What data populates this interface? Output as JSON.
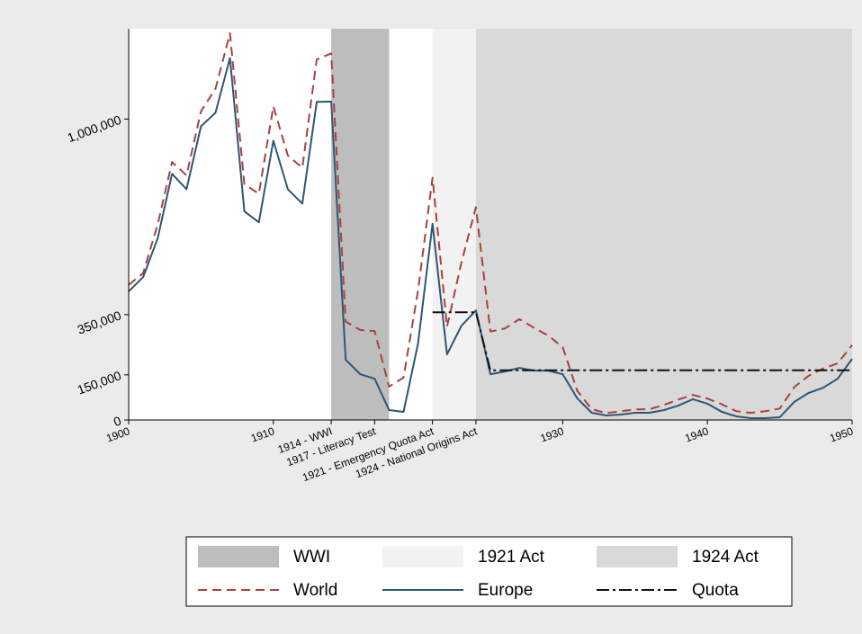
{
  "chart_data": {
    "type": "line",
    "x": [
      1900,
      1901,
      1902,
      1903,
      1904,
      1905,
      1906,
      1907,
      1908,
      1909,
      1910,
      1911,
      1912,
      1913,
      1914,
      1915,
      1916,
      1917,
      1918,
      1919,
      1920,
      1921,
      1922,
      1923,
      1924,
      1925,
      1926,
      1927,
      1928,
      1929,
      1930,
      1931,
      1932,
      1933,
      1934,
      1935,
      1936,
      1937,
      1938,
      1939,
      1940,
      1941,
      1942,
      1943,
      1944,
      1945,
      1946,
      1947,
      1948,
      1949,
      1950
    ],
    "series": [
      {
        "name": "World",
        "color": "#a8413f",
        "dash": "10,6",
        "values": [
          449000,
          488000,
          649000,
          857000,
          813000,
          1026000,
          1101000,
          1285000,
          783000,
          752000,
          1042000,
          879000,
          838000,
          1198000,
          1218000,
          327000,
          299000,
          295000,
          111000,
          141000,
          430000,
          805000,
          310000,
          523000,
          707000,
          294000,
          304000,
          335000,
          307000,
          280000,
          242000,
          97000,
          36000,
          23000,
          29000,
          35000,
          36000,
          50000,
          68000,
          83000,
          71000,
          52000,
          29000,
          24000,
          29000,
          38000,
          109000,
          147000,
          171000,
          188000,
          249000
        ]
      },
      {
        "name": "Europe",
        "color": "#2e5675",
        "dash": "none",
        "values": [
          427000,
          475000,
          603000,
          818000,
          767000,
          976000,
          1021000,
          1203000,
          693000,
          657000,
          928000,
          767000,
          719000,
          1057000,
          1058000,
          200000,
          152000,
          137000,
          33000,
          27000,
          254000,
          652000,
          218000,
          313000,
          364000,
          152000,
          161000,
          173000,
          164000,
          164000,
          152000,
          72000,
          24000,
          15000,
          18000,
          24000,
          24000,
          33000,
          48000,
          69000,
          54000,
          27000,
          12000,
          6000,
          6000,
          9000,
          60000,
          90000,
          107000,
          137000,
          203000
        ]
      },
      {
        "name": "Quota",
        "color": "#111111",
        "dash": "14,4,3,4",
        "values": [
          null,
          null,
          null,
          null,
          null,
          null,
          null,
          null,
          null,
          null,
          null,
          null,
          null,
          null,
          null,
          null,
          null,
          null,
          null,
          null,
          null,
          358000,
          358000,
          358000,
          358000,
          165000,
          165000,
          165000,
          165000,
          165000,
          165000,
          165000,
          165000,
          165000,
          165000,
          165000,
          165000,
          165000,
          165000,
          165000,
          165000,
          165000,
          165000,
          165000,
          165000,
          165000,
          165000,
          165000,
          165000,
          165000,
          165000
        ]
      }
    ],
    "regions": [
      {
        "name": "WWI",
        "start": 1914,
        "end": 1918,
        "color": "#bdbdbd"
      },
      {
        "name": "1921 Act",
        "start": 1921,
        "end": 1924,
        "color": "#f2f2f2"
      },
      {
        "name": "1924 Act",
        "start": 1924,
        "end": 1950,
        "color": "#d9d9d9"
      }
    ],
    "xlim": [
      1900,
      1950
    ],
    "xticks": [
      1900,
      1910,
      {
        "value": 1914,
        "label": "1914 - WWI"
      },
      {
        "value": 1917,
        "label": "1917 - Literacy Test"
      },
      {
        "value": 1921,
        "label": "1921 - Emergency Quota Act"
      },
      {
        "value": 1924,
        "label": "1924 - National Origins Act"
      },
      1930,
      1940,
      1950
    ],
    "ylim": [
      0,
      1300000
    ],
    "yticks": [
      0,
      {
        "value": 150000,
        "label": "150,000"
      },
      {
        "value": 350000,
        "label": "350,000"
      },
      {
        "value": 1000000,
        "label": "1,000,000"
      }
    ]
  }
}
